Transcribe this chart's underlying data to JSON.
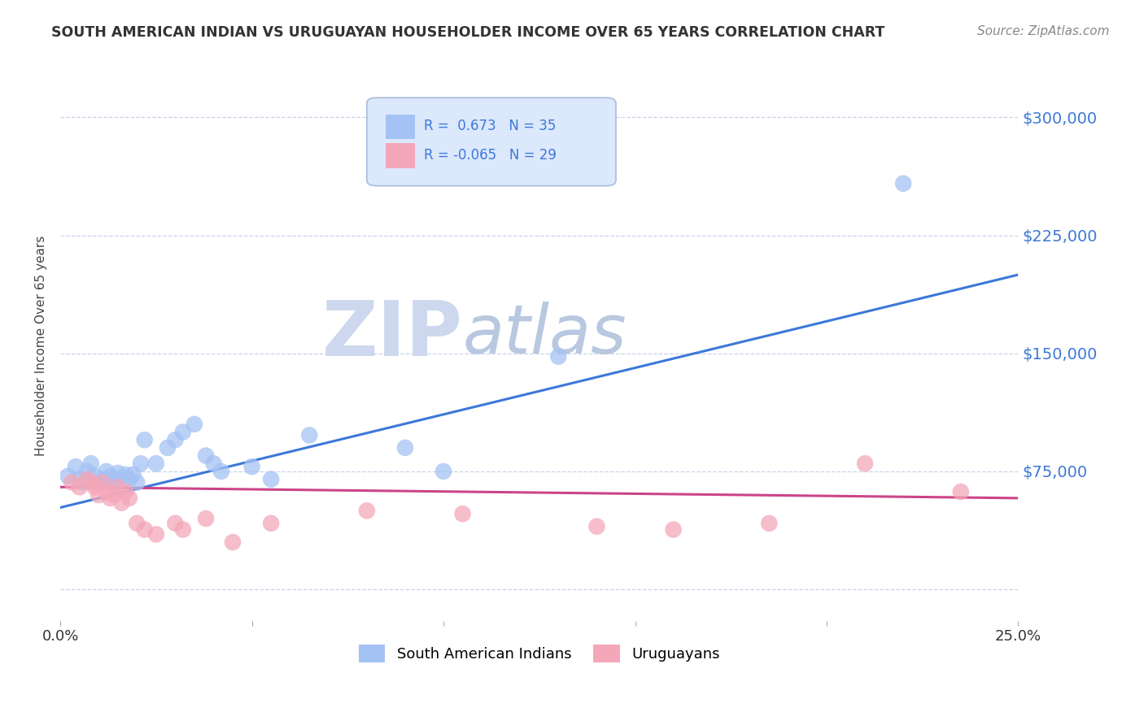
{
  "title": "SOUTH AMERICAN INDIAN VS URUGUAYAN HOUSEHOLDER INCOME OVER 65 YEARS CORRELATION CHART",
  "source": "Source: ZipAtlas.com",
  "ylabel": "Householder Income Over 65 years",
  "xlim": [
    0.0,
    0.25
  ],
  "ylim": [
    -20000,
    330000
  ],
  "yticks": [
    0,
    75000,
    150000,
    225000,
    300000
  ],
  "ytick_labels": [
    "",
    "$75,000",
    "$150,000",
    "$225,000",
    "$300,000"
  ],
  "blue_R": 0.673,
  "blue_N": 35,
  "pink_R": -0.065,
  "pink_N": 29,
  "blue_color": "#a4c2f4",
  "pink_color": "#f4a7b9",
  "blue_line_color": "#3c78d8",
  "pink_line_color": "#cc4488",
  "background_color": "#ffffff",
  "grid_color": "#c8d4e8",
  "title_color": "#333333",
  "source_color": "#888888",
  "watermark_zip_color": "#d0d8ec",
  "watermark_atlas_color": "#c0cce0",
  "legend_box_color": "#dce8fc",
  "legend_border_color": "#aabbdd",
  "blue_scatter_x": [
    0.002,
    0.004,
    0.005,
    0.006,
    0.007,
    0.008,
    0.009,
    0.01,
    0.011,
    0.012,
    0.013,
    0.014,
    0.015,
    0.016,
    0.017,
    0.018,
    0.019,
    0.02,
    0.021,
    0.022,
    0.025,
    0.028,
    0.03,
    0.032,
    0.035,
    0.038,
    0.04,
    0.042,
    0.05,
    0.055,
    0.065,
    0.09,
    0.1,
    0.13,
    0.22
  ],
  "blue_scatter_y": [
    72000,
    78000,
    70000,
    68000,
    75000,
    80000,
    72000,
    68000,
    70000,
    75000,
    72000,
    68000,
    74000,
    70000,
    73000,
    70000,
    73000,
    68000,
    80000,
    95000,
    80000,
    90000,
    95000,
    100000,
    105000,
    85000,
    80000,
    75000,
    78000,
    70000,
    98000,
    90000,
    75000,
    148000,
    258000
  ],
  "pink_scatter_x": [
    0.003,
    0.005,
    0.007,
    0.008,
    0.009,
    0.01,
    0.011,
    0.012,
    0.013,
    0.014,
    0.015,
    0.016,
    0.017,
    0.018,
    0.02,
    0.022,
    0.025,
    0.03,
    0.032,
    0.038,
    0.045,
    0.055,
    0.08,
    0.105,
    0.14,
    0.16,
    0.185,
    0.21,
    0.235
  ],
  "pink_scatter_y": [
    68000,
    65000,
    70000,
    68000,
    65000,
    60000,
    68000,
    62000,
    58000,
    60000,
    65000,
    55000,
    62000,
    58000,
    42000,
    38000,
    35000,
    42000,
    38000,
    45000,
    30000,
    42000,
    50000,
    48000,
    40000,
    38000,
    42000,
    80000,
    62000
  ],
  "blue_line_x0": 0.0,
  "blue_line_y0": 52000,
  "blue_line_x1": 0.25,
  "blue_line_y1": 200000,
  "pink_line_x0": 0.0,
  "pink_line_y0": 65000,
  "pink_line_x1": 0.25,
  "pink_line_y1": 58000
}
